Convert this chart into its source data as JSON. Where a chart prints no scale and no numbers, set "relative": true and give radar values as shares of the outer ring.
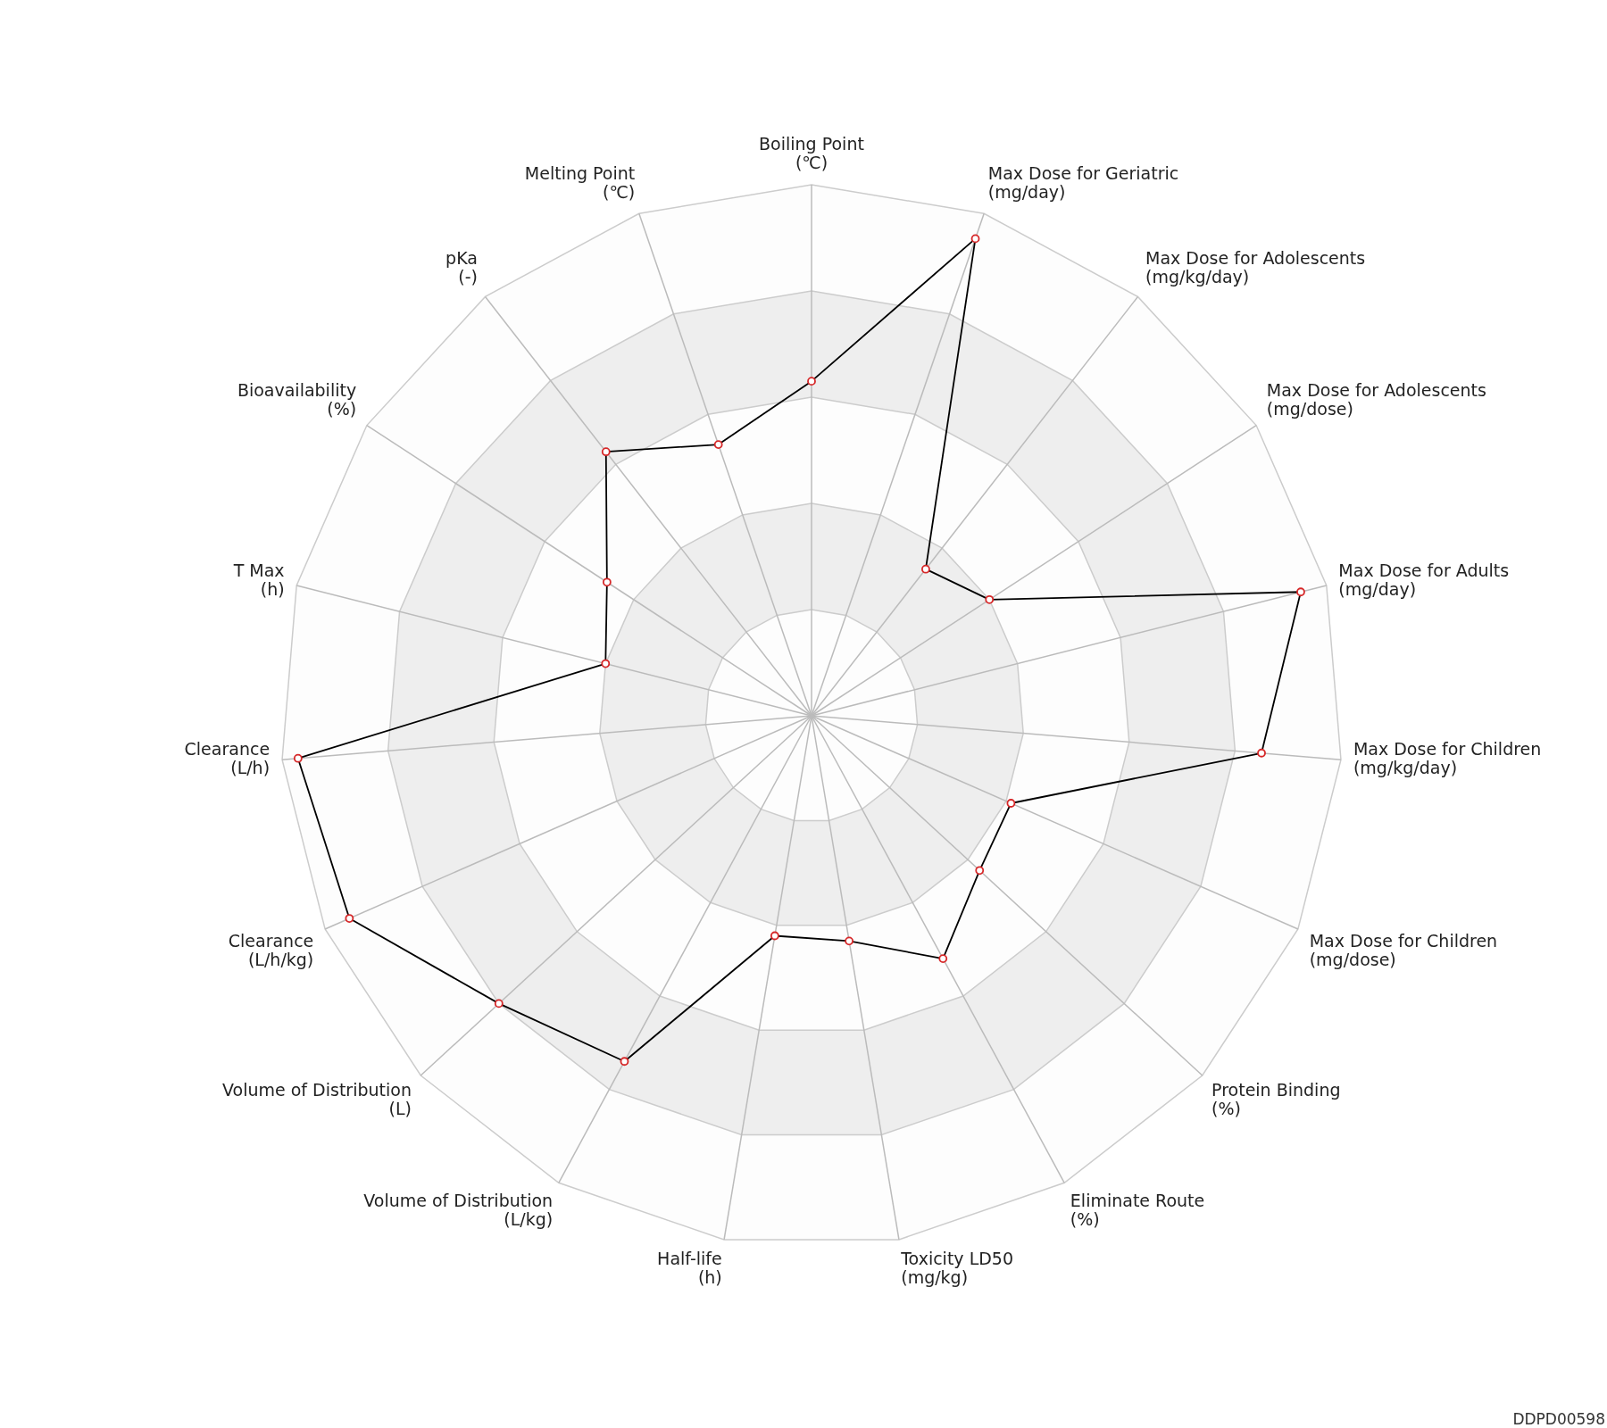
{
  "chart_data": {
    "type": "radar",
    "relative": true,
    "grid": true,
    "marker": "circle",
    "line_style": "solid",
    "categories": [
      "Boiling Point\n(℃)",
      "Max Dose for Geriatric\n(mg/day)",
      "Max Dose for Adolescents\n(mg/kg/day)",
      "Max Dose for Adolescents\n(mg/dose)",
      "Max Dose for Adults\n(mg/day)",
      "Max Dose for Children\n(mg/kg/day)",
      "Max Dose for Children\n(mg/dose)",
      "Protein Binding\n(%)",
      "Eliminate Route\n(%)",
      "Toxicity LD50\n(mg/kg)",
      "Half-life\n(h)",
      "Volume of Distribution\n(L/kg)",
      "Volume of Distribution\n(L)",
      "Clearance\n(L/h/kg)",
      "Clearance\n(L/h)",
      "T Max\n(h)",
      "Bioavailability\n(%)",
      "pKa\n(-)",
      "Melting Point\n(℃)"
    ],
    "series": [
      {
        "color": "#000000",
        "values": [
          0.63,
          0.95,
          0.35,
          0.4,
          0.95,
          0.85,
          0.41,
          0.43,
          0.52,
          0.43,
          0.42,
          0.74,
          0.8,
          0.95,
          0.97,
          0.4,
          0.46,
          0.63,
          0.54
        ]
      }
    ],
    "annotations": [
      "DDPD00598"
    ]
  }
}
